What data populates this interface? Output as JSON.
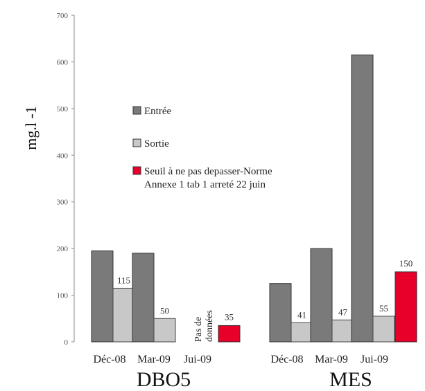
{
  "chart_data": {
    "type": "bar",
    "ylabel": "mg.l -1",
    "ylim": [
      0,
      700
    ],
    "yticks": [
      0,
      100,
      200,
      300,
      400,
      500,
      600,
      700
    ],
    "legend": {
      "position": "center-left",
      "items": [
        {
          "label": "Entrée",
          "color": "#7a7a7a"
        },
        {
          "label": "Sortie",
          "color": "#c8c8c8"
        },
        {
          "label": "Seuil à ne pas depasser-Norme",
          "label2": "Annexe 1 tab 1 arreté 22 juin",
          "color": "#e8002a"
        }
      ]
    },
    "groups": [
      {
        "name": "DBO5",
        "categories": [
          "Déc-08",
          "Mar-09",
          "Jui-09"
        ],
        "entree": [
          195,
          190,
          null
        ],
        "sortie": [
          115,
          50,
          null
        ],
        "sortie_labels": [
          "115",
          "50",
          ""
        ],
        "missing_note": [
          "Pas de",
          "données"
        ],
        "threshold": 35,
        "threshold_label": "35"
      },
      {
        "name": "MES",
        "categories": [
          "Déc-08",
          "Mar-09",
          "Jui-09"
        ],
        "entree": [
          125,
          200,
          615
        ],
        "sortie": [
          41,
          47,
          55
        ],
        "sortie_labels": [
          "41",
          "47",
          "55"
        ],
        "threshold": 150,
        "threshold_label": "150"
      }
    ]
  }
}
